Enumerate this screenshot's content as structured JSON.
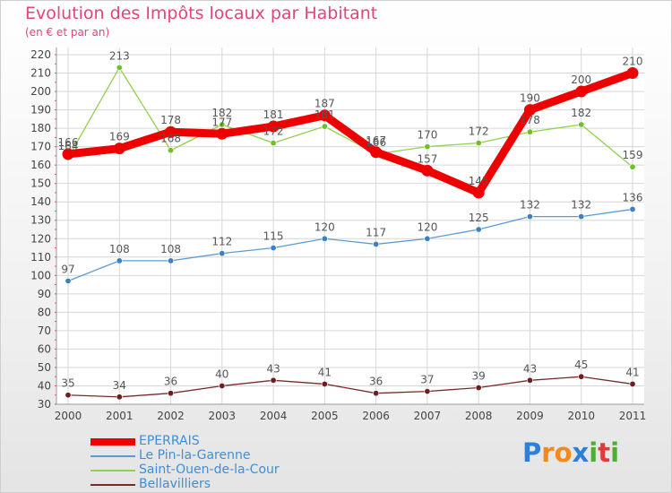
{
  "chart_data": {
    "type": "line",
    "title": "Evolution des Impôts locaux par Habitant",
    "subtitle": "(en € et par an)",
    "xlabel": "",
    "ylabel": "",
    "ylim": [
      30,
      220
    ],
    "ytick_step": 10,
    "grid": true,
    "legend_position": "bottom-left",
    "x": [
      "2000",
      "2001",
      "2002",
      "2003",
      "2004",
      "2005",
      "2006",
      "2007",
      "2008",
      "2009",
      "2010",
      "2011"
    ],
    "series": [
      {
        "name": "EPERRAIS",
        "color": "#ee0000",
        "emphasis": "thick",
        "values": [
          166,
          169,
          178,
          177,
          181,
          187,
          167,
          157,
          145,
          190,
          200,
          210
        ],
        "labels": [
          "166",
          "169",
          "178",
          "177",
          "181",
          "187",
          "167",
          "157",
          "145",
          "190",
          "200",
          "210"
        ]
      },
      {
        "name": "Le Pin-la-Garenne",
        "color": "#5b9bd5",
        "marker_color": "#3d7fc0",
        "values": [
          97,
          108,
          108,
          112,
          115,
          120,
          117,
          120,
          125,
          132,
          132,
          136
        ],
        "labels": [
          "97",
          "108",
          "108",
          "112",
          "115",
          "120",
          "117",
          "120",
          "125",
          "132",
          "132",
          "136"
        ]
      },
      {
        "name": "Saint-Ouen-de-la-Cour",
        "color": "#92d050",
        "marker_color": "#6fbf2a",
        "values": [
          164,
          213,
          168,
          182,
          172,
          181,
          166,
          170,
          172,
          178,
          182,
          159
        ],
        "labels": [
          "164",
          "213",
          "168",
          "182",
          "172",
          "181",
          "166",
          "170",
          "172",
          "178",
          "182",
          "159"
        ]
      },
      {
        "name": "Bellavilliers",
        "color": "#7b2a2a",
        "marker_color": "#6b1f1f",
        "values": [
          35,
          34,
          36,
          40,
          43,
          41,
          36,
          37,
          39,
          43,
          45,
          41
        ],
        "labels": [
          "35",
          "34",
          "36",
          "40",
          "43",
          "41",
          "36",
          "37",
          "39",
          "43",
          "45",
          "41"
        ]
      }
    ]
  },
  "logo": {
    "letters": [
      "P",
      "r",
      "o",
      "x",
      "i",
      "t",
      "i"
    ],
    "colors": [
      "#2e7fd6",
      "#f08a1c",
      "#f08a1c",
      "#2e7fd6",
      "#4caf32",
      "#e03a3a",
      "#4caf32"
    ]
  }
}
